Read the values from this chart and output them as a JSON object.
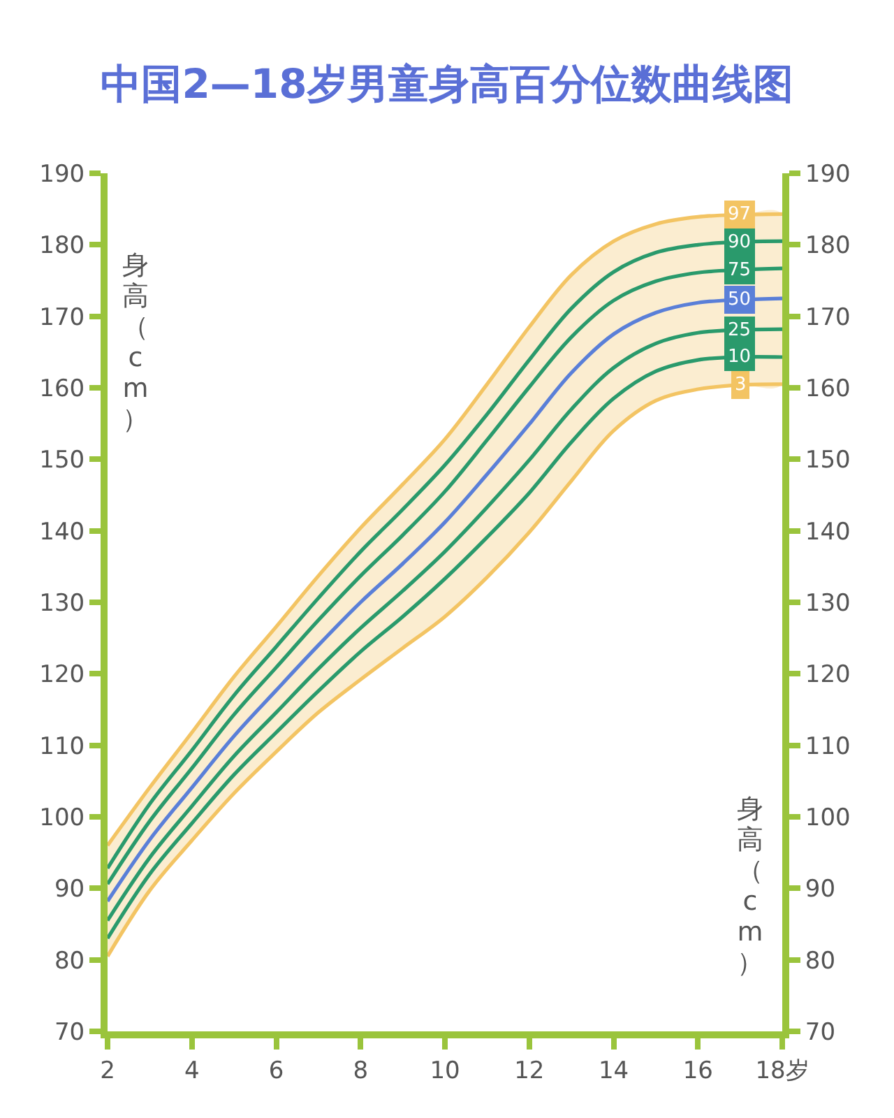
{
  "chart_data": {
    "type": "line",
    "title": "中国2—18岁男童身高百分位数曲线图",
    "ylabel": "身高（cm）",
    "y2label": "身高（cm）",
    "x": [
      2,
      3,
      4,
      5,
      6,
      7,
      8,
      9,
      10,
      11,
      12,
      13,
      14,
      15,
      16,
      17,
      18
    ],
    "xlim": [
      2,
      18
    ],
    "xticks": [
      2,
      4,
      6,
      8,
      10,
      12,
      14,
      16,
      {
        "value": 18,
        "label": "18岁"
      }
    ],
    "ylim": [
      70,
      190
    ],
    "yticks": [
      70,
      80,
      90,
      100,
      110,
      120,
      130,
      140,
      150,
      160,
      170,
      180,
      190
    ],
    "y2lim": [
      70,
      190
    ],
    "y2ticks": [
      70,
      80,
      90,
      100,
      110,
      120,
      130,
      140,
      150,
      160,
      170,
      180,
      190
    ],
    "legend": false,
    "series": [
      {
        "name": "3",
        "color": "#f3c463",
        "values": [
          80.5,
          89.7,
          96.7,
          103.3,
          109.1,
          114.6,
          119.2,
          123.6,
          128.0,
          133.5,
          139.8,
          147.0,
          154.0,
          158.2,
          159.8,
          160.4,
          160.5
        ]
      },
      {
        "name": "10",
        "color": "#2a9a6c",
        "values": [
          83.0,
          92.0,
          99.1,
          105.9,
          111.8,
          117.6,
          123.1,
          128.0,
          133.3,
          139.1,
          145.3,
          152.4,
          158.5,
          162.3,
          163.9,
          164.3,
          164.3
        ]
      },
      {
        "name": "25",
        "color": "#2a9a6c",
        "values": [
          85.5,
          94.3,
          101.5,
          108.5,
          114.6,
          120.7,
          126.4,
          131.6,
          137.1,
          143.3,
          149.9,
          157.0,
          162.8,
          166.2,
          167.7,
          168.1,
          168.2
        ]
      },
      {
        "name": "50",
        "color": "#5a7fd8",
        "values": [
          88.2,
          96.8,
          104.1,
          111.3,
          117.7,
          124.0,
          130.0,
          135.4,
          141.2,
          147.9,
          154.9,
          162.1,
          167.5,
          170.5,
          171.9,
          172.3,
          172.5
        ],
        "lower": [
          80.5,
          89.7,
          96.7,
          103.3,
          109.1,
          114.6,
          119.2,
          123.6,
          128.0,
          133.5,
          139.8,
          147.0,
          154.0,
          158.2,
          159.8,
          160.4,
          160.5
        ],
        "upper": [
          96.0,
          104.1,
          111.8,
          119.6,
          126.6,
          133.7,
          140.4,
          146.5,
          152.8,
          160.5,
          168.5,
          175.8,
          180.5,
          182.9,
          183.9,
          184.2,
          184.3
        ]
      },
      {
        "name": "75",
        "color": "#2a9a6c",
        "values": [
          90.6,
          99.4,
          106.8,
          114.3,
          120.9,
          127.5,
          133.7,
          139.4,
          145.5,
          152.7,
          160.1,
          167.1,
          172.2,
          174.9,
          176.1,
          176.5,
          176.7
        ]
      },
      {
        "name": "90",
        "color": "#2a9a6c",
        "values": [
          92.8,
          101.8,
          109.3,
          117.0,
          123.8,
          130.6,
          137.1,
          143.0,
          149.2,
          156.3,
          163.9,
          171.1,
          176.2,
          178.9,
          180.0,
          180.4,
          180.5
        ]
      },
      {
        "name": "97",
        "color": "#f3c463",
        "values": [
          96.0,
          104.1,
          111.8,
          119.6,
          126.6,
          133.7,
          140.4,
          146.5,
          152.8,
          160.5,
          168.5,
          175.8,
          180.5,
          182.9,
          183.9,
          184.2,
          184.3
        ]
      }
    ]
  }
}
